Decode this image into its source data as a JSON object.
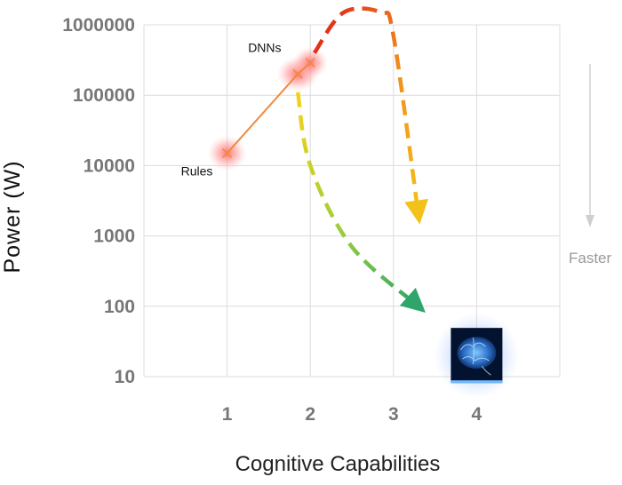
{
  "chart_data": {
    "type": "line",
    "xlabel": "Cognitive Capabilities",
    "ylabel": "Power (W)",
    "x_ticks": [
      "1",
      "2",
      "3",
      "4"
    ],
    "y_ticks": [
      "10",
      "100",
      "1000",
      "10000",
      "100000",
      "1000000"
    ],
    "xlim": [
      0,
      5
    ],
    "ylim": [
      10,
      1000000
    ],
    "y_scale": "log",
    "grid": true,
    "series": [
      {
        "points": [
          {
            "x": 1,
            "y": 15000
          },
          {
            "x": 1.85,
            "y": 200000
          },
          {
            "x": 2,
            "y": 290000
          }
        ],
        "color": "#f08a3c"
      }
    ],
    "annotations": [
      {
        "text": "Rules",
        "x": 1,
        "y": 15000
      },
      {
        "text": "DNNs",
        "x": 2,
        "y": 290000
      },
      {
        "text": "Faster",
        "x": null,
        "y": null
      }
    ],
    "trend_arrows": [
      {
        "path": [
          [
            2.05,
            400000
          ],
          [
            2.4,
            1500000
          ],
          [
            2.85,
            1500000
          ],
          [
            3.0,
            700000
          ],
          [
            3.3,
            2000
          ]
        ],
        "colors": [
          "#e01a1a",
          "#f28c1c",
          "#f2c21a"
        ]
      },
      {
        "path": [
          [
            1.85,
            110000
          ],
          [
            2.0,
            10000
          ],
          [
            2.5,
            700
          ],
          [
            3.3,
            100
          ]
        ],
        "colors": [
          "#f2d21a",
          "#9ccd3a",
          "#2ea56a"
        ]
      }
    ],
    "image_marker": {
      "name": "brain-image",
      "x": 4,
      "y": 20
    }
  }
}
